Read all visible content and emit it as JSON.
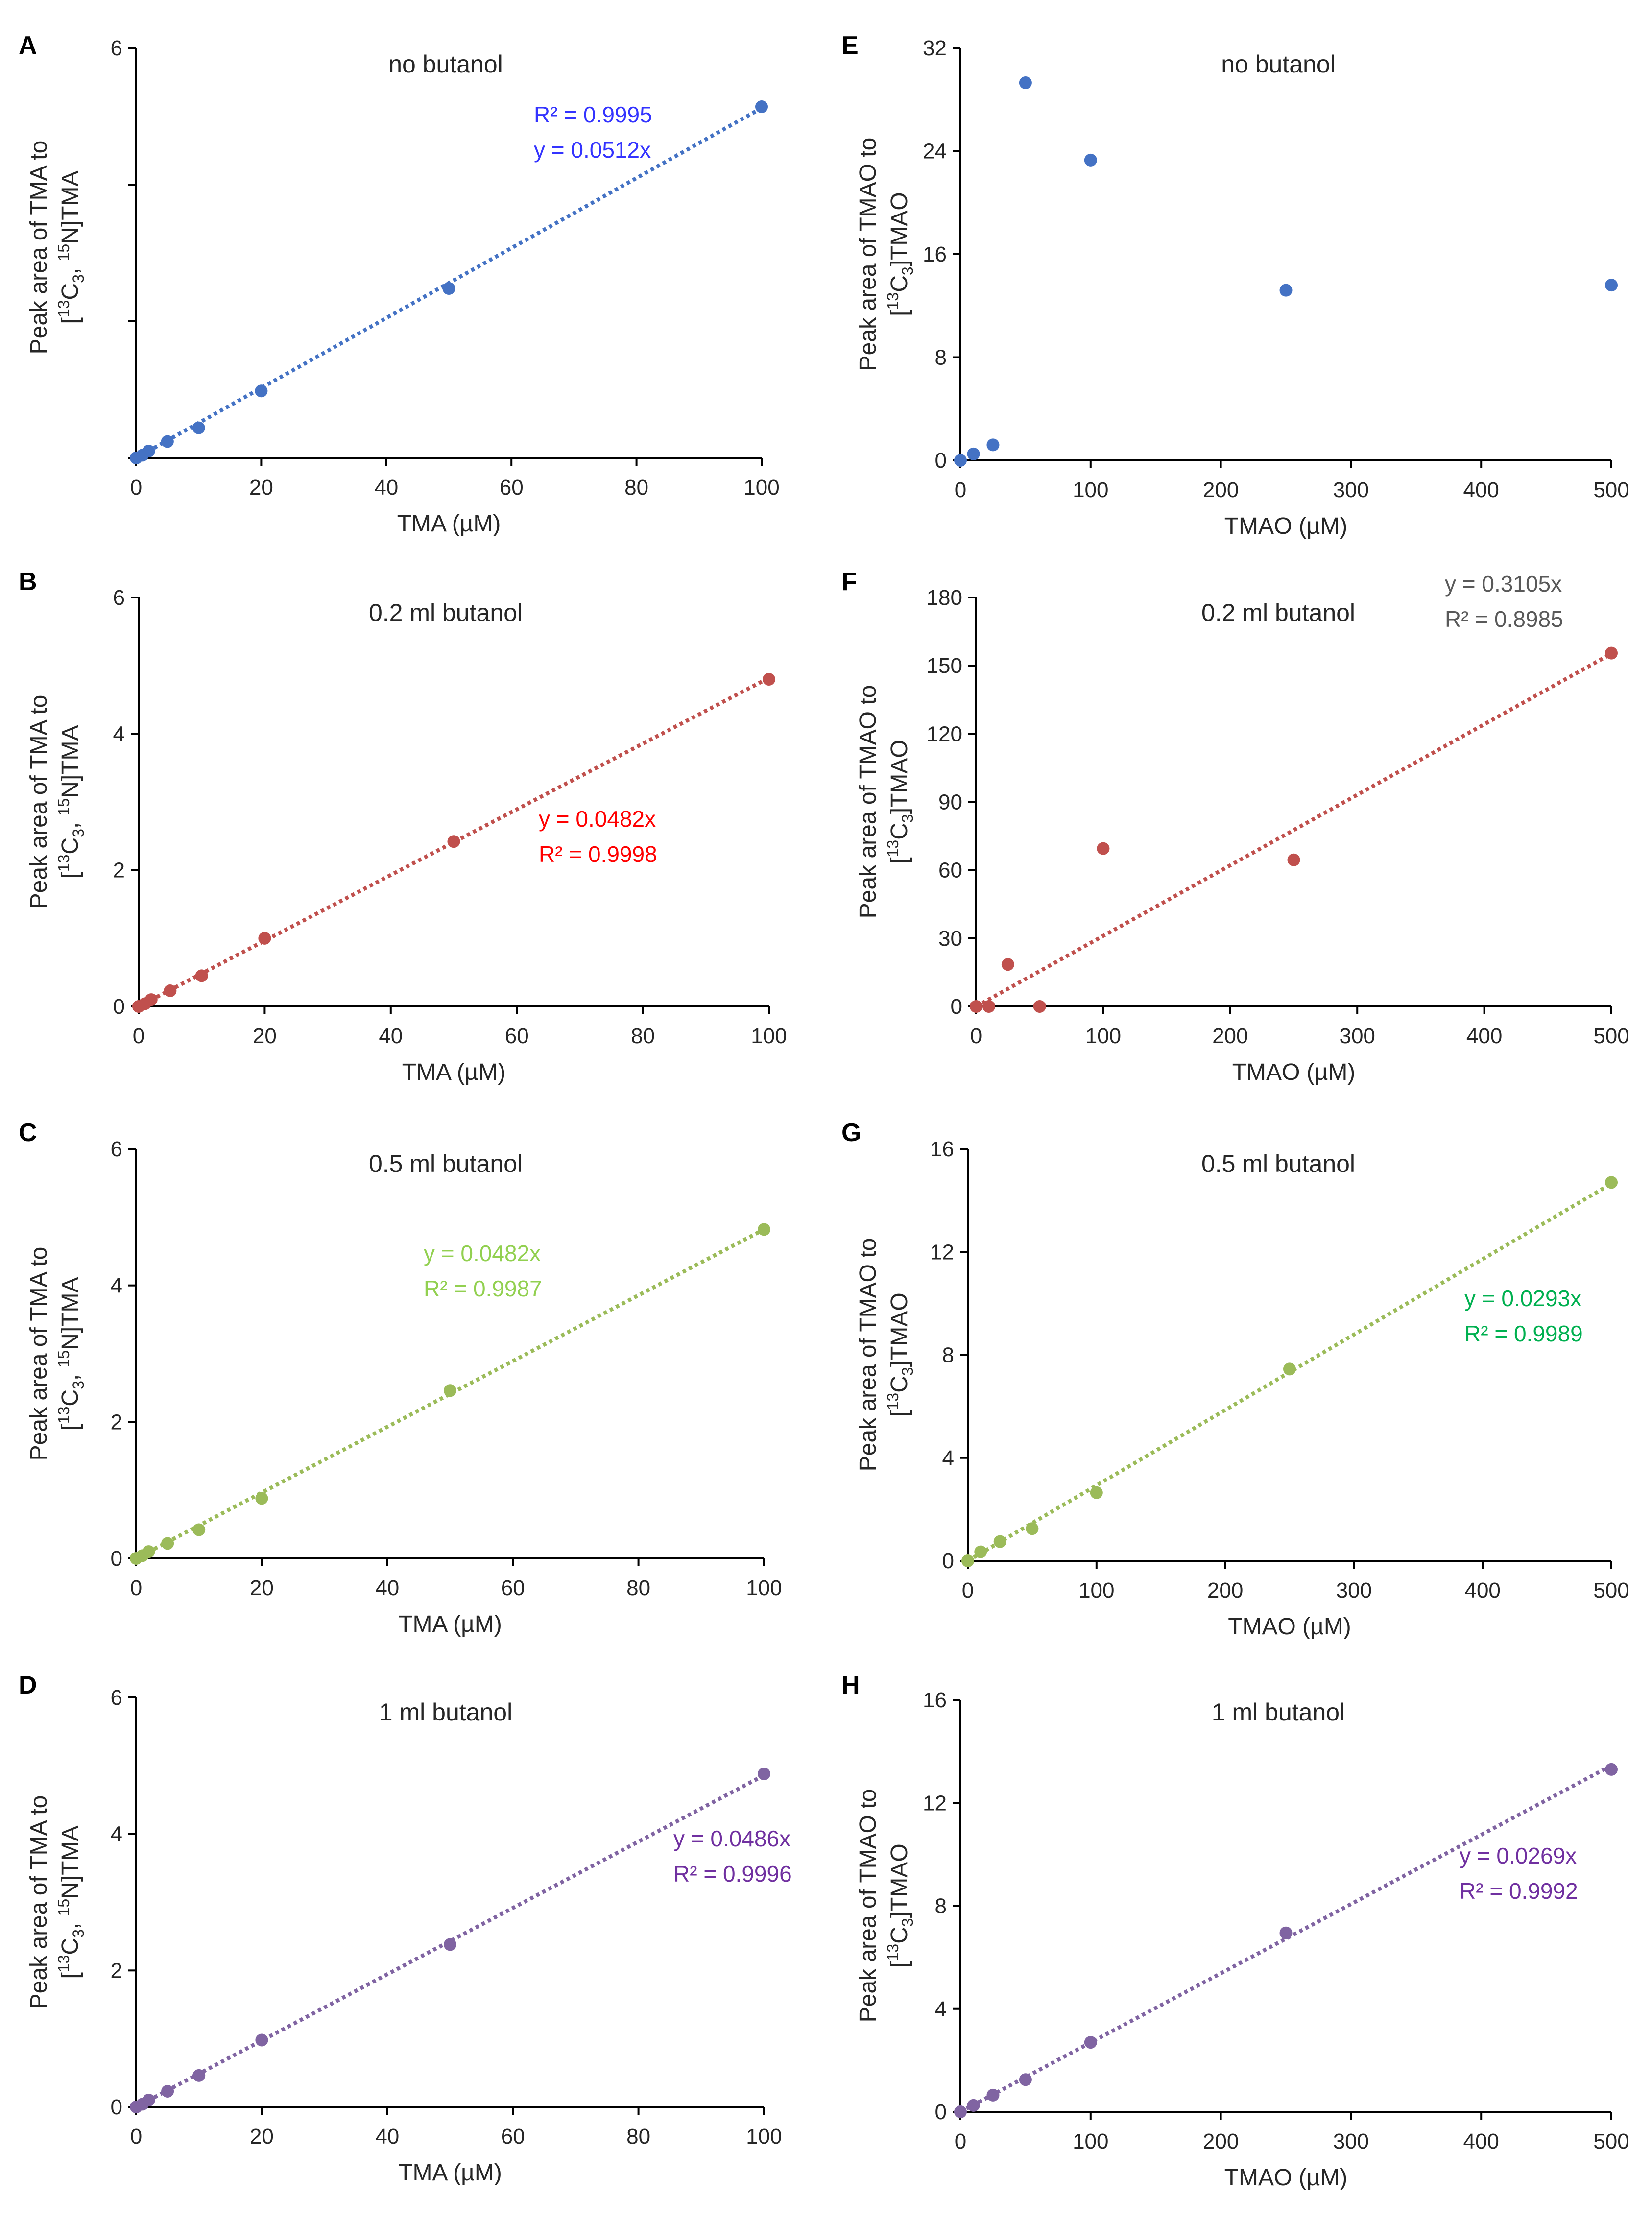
{
  "figure": {
    "panels": [
      "A",
      "B",
      "C",
      "D",
      "E",
      "F",
      "G",
      "H"
    ]
  },
  "chart_data": [
    {
      "panel": "A",
      "type": "scatter",
      "title": "no butanol",
      "xlabel": "TMA (µM)",
      "ylabel_line1": "Peak area of TMA to",
      "ylabel_line2": "[13C3, 15N]TMA",
      "xlim": [
        0,
        100
      ],
      "ylim": [
        0,
        6
      ],
      "xticks": [
        0,
        20,
        40,
        60,
        80,
        100
      ],
      "yticks": [
        6
      ],
      "x": [
        0,
        1,
        2,
        5,
        10,
        20,
        50,
        100
      ],
      "y": [
        0,
        0.04,
        0.1,
        0.24,
        0.44,
        0.98,
        2.48,
        5.14
      ],
      "color": "#4472C4",
      "trendline": {
        "slope": 0.0512,
        "color": "#4472C4"
      },
      "annotations": [
        {
          "text": "R² = 0.9995",
          "color": "#3333FF"
        },
        {
          "text": "y = 0.0512x",
          "color": "#3333FF"
        }
      ]
    },
    {
      "panel": "B",
      "type": "scatter",
      "title": "0.2 ml butanol",
      "xlabel": "TMA (µM)",
      "ylabel_line1": "Peak area of TMA to",
      "ylabel_line2": "[13C3, 15N]TMA",
      "xlim": [
        0,
        100
      ],
      "ylim": [
        0,
        6
      ],
      "xticks": [
        0,
        20,
        40,
        60,
        80,
        100
      ],
      "yticks": [
        0,
        2,
        4,
        6
      ],
      "x": [
        0,
        1,
        2,
        5,
        10,
        20,
        50,
        100
      ],
      "y": [
        0,
        0.04,
        0.1,
        0.23,
        0.45,
        1.0,
        2.42,
        4.8
      ],
      "color": "#C0504D",
      "trendline": {
        "slope": 0.0482,
        "color": "#C0504D"
      },
      "annotations": [
        {
          "text": "y = 0.0482x",
          "color": "#FF0000"
        },
        {
          "text": "R² = 0.9998",
          "color": "#FF0000"
        }
      ]
    },
    {
      "panel": "C",
      "type": "scatter",
      "title": "0.5 ml butanol",
      "xlabel": "TMA (µM)",
      "ylabel_line1": "Peak area of TMA to",
      "ylabel_line2": "[13C3, 15N]TMA",
      "xlim": [
        0,
        100
      ],
      "ylim": [
        0,
        6
      ],
      "xticks": [
        0,
        20,
        40,
        60,
        80,
        100
      ],
      "yticks": [
        0,
        2,
        4,
        6
      ],
      "x": [
        0,
        1,
        2,
        5,
        10,
        20,
        50,
        100
      ],
      "y": [
        0,
        0.04,
        0.1,
        0.22,
        0.42,
        0.88,
        2.46,
        4.82
      ],
      "color": "#9BBB59",
      "trendline": {
        "slope": 0.0482,
        "color": "#9BBB59"
      },
      "annotations": [
        {
          "text": "y = 0.0482x",
          "color": "#92D050"
        },
        {
          "text": "R² = 0.9987",
          "color": "#92D050"
        }
      ]
    },
    {
      "panel": "D",
      "type": "scatter",
      "title": "1 ml butanol",
      "xlabel": "TMA (µM)",
      "ylabel_line1": "Peak area of TMA to",
      "ylabel_line2": "[13C3, 15N]TMA",
      "xlim": [
        0,
        100
      ],
      "ylim": [
        0,
        6
      ],
      "xticks": [
        0,
        20,
        40,
        60,
        80,
        100
      ],
      "yticks": [
        0,
        2,
        4,
        6
      ],
      "x": [
        0,
        1,
        2,
        5,
        10,
        20,
        50,
        100
      ],
      "y": [
        0,
        0.04,
        0.1,
        0.23,
        0.46,
        0.98,
        2.38,
        4.88
      ],
      "color": "#8064A2",
      "trendline": {
        "slope": 0.0486,
        "color": "#8064A2"
      },
      "annotations": [
        {
          "text": "y = 0.0486x",
          "color": "#7030A0"
        },
        {
          "text": "R² = 0.9996",
          "color": "#7030A0"
        }
      ]
    },
    {
      "panel": "E",
      "type": "scatter",
      "title": "no butanol",
      "xlabel": "TMAO (µM)",
      "ylabel_line1": "Peak area of TMAO to",
      "ylabel_line2": "[13C3]TMAO",
      "xlim": [
        0,
        500
      ],
      "ylim": [
        0,
        32
      ],
      "xticks": [
        0,
        100,
        200,
        300,
        400,
        500
      ],
      "yticks": [
        0,
        8,
        16,
        24,
        32
      ],
      "x": [
        0,
        10,
        25,
        50,
        100,
        250,
        500
      ],
      "y": [
        0,
        0.5,
        1.2,
        29.3,
        23.3,
        13.2,
        13.6
      ],
      "color": "#4472C4",
      "trendline": null,
      "annotations": []
    },
    {
      "panel": "F",
      "type": "scatter",
      "title": "0.2 ml butanol",
      "xlabel": "TMAO (µM)",
      "ylabel_line1": "Peak area of TMAO to",
      "ylabel_line2": "[13C3]TMAO",
      "xlim": [
        0,
        500
      ],
      "ylim": [
        0,
        180
      ],
      "xticks": [
        0,
        100,
        200,
        300,
        400,
        500
      ],
      "yticks": [
        0,
        30,
        60,
        90,
        120,
        150,
        180
      ],
      "x": [
        0,
        10,
        25,
        50,
        100,
        250,
        500
      ],
      "y": [
        0,
        0,
        18.5,
        0,
        69.5,
        64.5,
        155.5
      ],
      "color": "#C0504D",
      "trendline": {
        "slope": 0.3105,
        "color": "#C0504D"
      },
      "annotations": [
        {
          "text": "y = 0.3105x",
          "color": "#595959"
        },
        {
          "text": "R² = 0.8985",
          "color": "#595959"
        }
      ]
    },
    {
      "panel": "G",
      "type": "scatter",
      "title": "0.5 ml butanol",
      "xlabel": "TMAO (µM)",
      "ylabel_line1": "Peak area of TMAO to",
      "ylabel_line2": "[13C3]TMAO",
      "xlim": [
        0,
        500
      ],
      "ylim": [
        0,
        16
      ],
      "xticks": [
        0,
        100,
        200,
        300,
        400,
        500
      ],
      "yticks": [
        0,
        4,
        8,
        12,
        16
      ],
      "x": [
        0,
        10,
        25,
        50,
        100,
        250,
        500
      ],
      "y": [
        0,
        0.35,
        0.75,
        1.25,
        2.65,
        7.45,
        14.7
      ],
      "color": "#9BBB59",
      "trendline": {
        "slope": 0.0293,
        "color": "#9BBB59"
      },
      "annotations": [
        {
          "text": "y = 0.0293x",
          "color": "#00B050"
        },
        {
          "text": "R² = 0.9989",
          "color": "#00B050"
        }
      ]
    },
    {
      "panel": "H",
      "type": "scatter",
      "title": "1 ml butanol",
      "xlabel": "TMAO (µM)",
      "ylabel_line1": "Peak area of TMAO to",
      "ylabel_line2": "[13C3]TMAO",
      "xlim": [
        0,
        500
      ],
      "ylim": [
        0,
        16
      ],
      "xticks": [
        0,
        100,
        200,
        300,
        400,
        500
      ],
      "yticks": [
        0,
        4,
        8,
        12,
        16
      ],
      "x": [
        0,
        10,
        25,
        50,
        100,
        250,
        500
      ],
      "y": [
        0,
        0.25,
        0.65,
        1.25,
        2.7,
        6.95,
        13.3
      ],
      "color": "#8064A2",
      "trendline": {
        "slope": 0.0269,
        "color": "#8064A2"
      },
      "annotations": [
        {
          "text": "y = 0.0269x",
          "color": "#7030A0"
        },
        {
          "text": "R² = 0.9992",
          "color": "#7030A0"
        }
      ]
    }
  ]
}
